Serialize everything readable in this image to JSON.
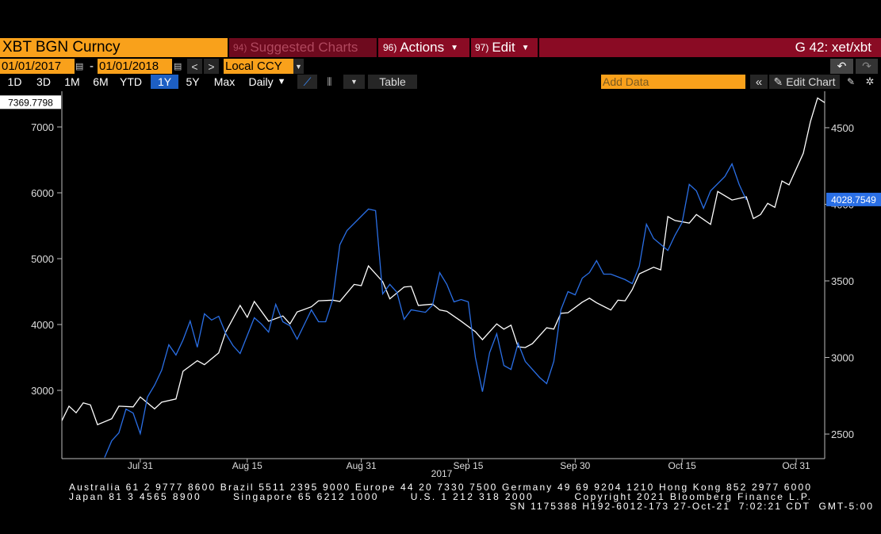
{
  "toolbar": {
    "security": "XBT BGN Curncy",
    "menu": [
      {
        "num": "94)",
        "label": "Suggested Charts"
      },
      {
        "num": "96)",
        "label": "Actions"
      },
      {
        "num": "97)",
        "label": "Edit"
      }
    ],
    "page_id": "G 42: xet/xbt"
  },
  "range": {
    "start": "01/01/2017",
    "separator": "-",
    "end": "01/01/2018",
    "currency": "Local CCY"
  },
  "controls": {
    "periods": [
      "1D",
      "3D",
      "1M",
      "6M",
      "YTD",
      "1Y",
      "5Y",
      "Max"
    ],
    "selected_period": "1Y",
    "frequency": "Daily",
    "table": "Table",
    "add_data": "Add Data",
    "edit_chart": "Edit Chart"
  },
  "chart_data": {
    "type": "line",
    "xlabel": "2017",
    "xlim": [
      "2017-07-20",
      "2017-11-04"
    ],
    "xticks": [
      {
        "value": "2017-07-31",
        "label": "Jul 31"
      },
      {
        "value": "2017-08-15",
        "label": "Aug 15"
      },
      {
        "value": "2017-08-31",
        "label": "Aug 31"
      },
      {
        "value": "2017-09-15",
        "label": "Sep 15"
      },
      {
        "value": "2017-09-30",
        "label": "Sep 30"
      },
      {
        "value": "2017-10-15",
        "label": "Oct 15"
      },
      {
        "value": "2017-10-31",
        "label": "Oct 31"
      }
    ],
    "ylim": [
      1988,
      7542
    ],
    "yticks": [
      3000,
      4000,
      5000,
      6000,
      7000
    ],
    "y2lim": [
      2350,
      4738
    ],
    "y2ticks": [
      2500,
      3000,
      3500,
      4000,
      4500
    ],
    "series": [
      {
        "color": "#ffffff",
        "x": [
          "2017-07-20",
          "2017-07-21",
          "2017-07-22",
          "2017-07-23",
          "2017-07-24",
          "2017-07-25",
          "2017-07-27",
          "2017-07-28",
          "2017-07-30",
          "2017-07-31",
          "2017-08-02",
          "2017-08-03",
          "2017-08-05",
          "2017-08-06",
          "2017-08-08",
          "2017-08-09",
          "2017-08-11",
          "2017-08-12",
          "2017-08-14",
          "2017-08-15",
          "2017-08-16",
          "2017-08-18",
          "2017-08-20",
          "2017-08-21",
          "2017-08-22",
          "2017-08-24",
          "2017-08-25",
          "2017-08-27",
          "2017-08-28",
          "2017-08-30",
          "2017-08-31",
          "2017-09-01",
          "2017-09-03",
          "2017-09-04",
          "2017-09-06",
          "2017-09-07",
          "2017-09-08",
          "2017-09-10",
          "2017-09-11",
          "2017-09-12",
          "2017-09-14",
          "2017-09-16",
          "2017-09-17",
          "2017-09-19",
          "2017-09-20",
          "2017-09-21",
          "2017-09-22",
          "2017-09-23",
          "2017-09-24",
          "2017-09-26",
          "2017-09-27",
          "2017-09-28",
          "2017-09-29",
          "2017-10-01",
          "2017-10-02",
          "2017-10-03",
          "2017-10-05",
          "2017-10-06",
          "2017-10-07",
          "2017-10-08",
          "2017-10-09",
          "2017-10-11",
          "2017-10-12",
          "2017-10-13",
          "2017-10-14",
          "2017-10-16",
          "2017-10-17",
          "2017-10-19",
          "2017-10-20",
          "2017-10-22",
          "2017-10-24",
          "2017-10-25",
          "2017-10-26",
          "2017-10-27",
          "2017-10-28",
          "2017-10-29",
          "2017-10-30",
          "2017-11-01",
          "2017-11-02",
          "2017-11-03",
          "2017-11-04"
        ],
        "values": [
          2540,
          2760,
          2660,
          2810,
          2780,
          2480,
          2570,
          2760,
          2750,
          2900,
          2720,
          2820,
          2870,
          3290,
          3450,
          3390,
          3570,
          3890,
          4290,
          4110,
          4350,
          4050,
          4130,
          4010,
          4190,
          4270,
          4360,
          4370,
          4350,
          4610,
          4590,
          4890,
          4650,
          4390,
          4570,
          4580,
          4290,
          4310,
          4220,
          4200,
          4050,
          3890,
          3770,
          4010,
          3930,
          3990,
          3660,
          3650,
          3710,
          3950,
          3930,
          4170,
          4180,
          4340,
          4400,
          4330,
          4220,
          4370,
          4360,
          4530,
          4770,
          4870,
          4830,
          5640,
          5580,
          5540,
          5670,
          5520,
          6020,
          5890,
          5940,
          5610,
          5670,
          5840,
          5780,
          6180,
          6120,
          6600,
          7080,
          7440,
          7369.7798
        ]
      },
      {
        "color": "#2a6fe6",
        "axis": "y2",
        "x": [
          "2017-07-26",
          "2017-07-27",
          "2017-07-28",
          "2017-07-29",
          "2017-07-30",
          "2017-07-31",
          "2017-08-01",
          "2017-08-02",
          "2017-08-03",
          "2017-08-04",
          "2017-08-05",
          "2017-08-06",
          "2017-08-07",
          "2017-08-08",
          "2017-08-09",
          "2017-08-10",
          "2017-08-11",
          "2017-08-12",
          "2017-08-13",
          "2017-08-14",
          "2017-08-16",
          "2017-08-17",
          "2017-08-18",
          "2017-08-19",
          "2017-08-20",
          "2017-08-21",
          "2017-08-22",
          "2017-08-24",
          "2017-08-25",
          "2017-08-26",
          "2017-08-27",
          "2017-08-28",
          "2017-08-29",
          "2017-08-31",
          "2017-09-01",
          "2017-09-02",
          "2017-09-03",
          "2017-09-04",
          "2017-09-05",
          "2017-09-06",
          "2017-09-07",
          "2017-09-09",
          "2017-09-10",
          "2017-09-11",
          "2017-09-12",
          "2017-09-13",
          "2017-09-14",
          "2017-09-15",
          "2017-09-16",
          "2017-09-17",
          "2017-09-18",
          "2017-09-19",
          "2017-09-20",
          "2017-09-21",
          "2017-09-22",
          "2017-09-23",
          "2017-09-25",
          "2017-09-26",
          "2017-09-27",
          "2017-09-28",
          "2017-09-29",
          "2017-09-30",
          "2017-10-01",
          "2017-10-02",
          "2017-10-03",
          "2017-10-04",
          "2017-10-05",
          "2017-10-07",
          "2017-10-08",
          "2017-10-09",
          "2017-10-10",
          "2017-10-11",
          "2017-10-13",
          "2017-10-14",
          "2017-10-15",
          "2017-10-16",
          "2017-10-17",
          "2017-10-18",
          "2017-10-19",
          "2017-10-21",
          "2017-10-22",
          "2017-10-23",
          "2017-10-24"
        ],
        "values": [
          2347,
          2456,
          2508,
          2663,
          2637,
          2503,
          2741,
          2819,
          2917,
          3083,
          3016,
          3114,
          3238,
          3067,
          3285,
          3244,
          3269,
          3155,
          3078,
          3026,
          3259,
          3218,
          3166,
          3347,
          3233,
          3207,
          3119,
          3311,
          3233,
          3233,
          3378,
          3736,
          3829,
          3922,
          3969,
          3959,
          3415,
          3477,
          3425,
          3249,
          3311,
          3295,
          3342,
          3554,
          3477,
          3363,
          3378,
          3363,
          3000,
          2777,
          3031,
          3155,
          2948,
          2922,
          3093,
          2974,
          2870,
          2829,
          2974,
          3311,
          3430,
          3409,
          3518,
          3554,
          3632,
          3544,
          3544,
          3508,
          3482,
          3596,
          3870,
          3777,
          3699,
          3798,
          3881,
          4130,
          4088,
          3974,
          4088,
          4181,
          4264,
          4130,
          4028.7549
        ]
      }
    ]
  },
  "footer": {
    "lines": [
      "Australia 61 2 9777 8600 Brazil 5511 2395 9000 Europe 44 20 7330 7500 Germany 49 69 9204 1210 Hong Kong 852 2977 6000",
      "Japan 81 3 4565 8900       Singapore 65 6212 1000       U.S. 1 212 318 2000         Copyright 2021 Bloomberg Finance L.P.",
      "SN 1175388 H192-6012-173 27-Oct-21  7:02:21 CDT  GMT-5:00"
    ]
  }
}
